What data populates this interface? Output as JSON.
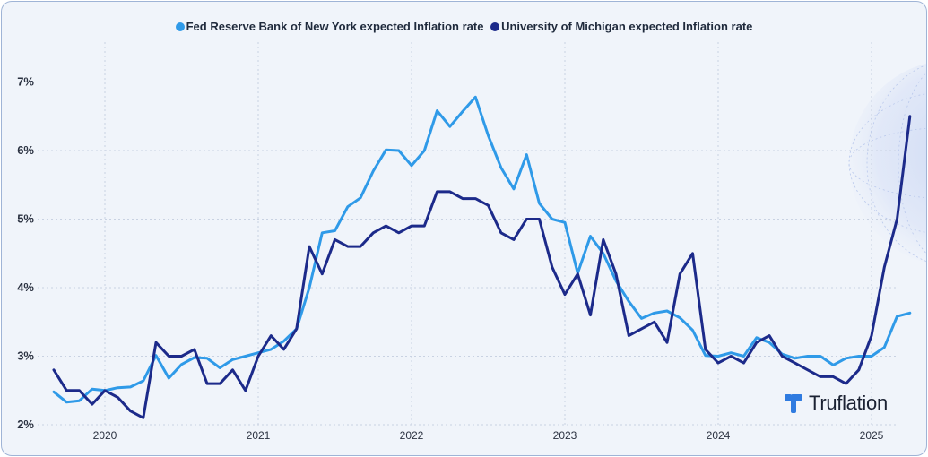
{
  "chart_data": {
    "type": "line",
    "title": "",
    "xlabel": "",
    "ylabel": "",
    "x_ticks": [
      "2020",
      "2021",
      "2022",
      "2023",
      "2024",
      "2025"
    ],
    "y_ticks": [
      "2%",
      "3%",
      "4%",
      "5%",
      "6%",
      "7%"
    ],
    "ylim": [
      2,
      7.6
    ],
    "x_range": [
      "2019-08",
      "2025-05"
    ],
    "grid": "dotted",
    "legend_position": "top-center",
    "dates": [
      "2019-09",
      "2019-10",
      "2019-11",
      "2019-12",
      "2020-01",
      "2020-02",
      "2020-03",
      "2020-04",
      "2020-05",
      "2020-06",
      "2020-07",
      "2020-08",
      "2020-09",
      "2020-10",
      "2020-11",
      "2020-12",
      "2021-01",
      "2021-02",
      "2021-03",
      "2021-04",
      "2021-05",
      "2021-06",
      "2021-07",
      "2021-08",
      "2021-09",
      "2021-10",
      "2021-11",
      "2021-12",
      "2022-01",
      "2022-02",
      "2022-03",
      "2022-04",
      "2022-05",
      "2022-06",
      "2022-07",
      "2022-08",
      "2022-09",
      "2022-10",
      "2022-11",
      "2022-12",
      "2023-01",
      "2023-02",
      "2023-03",
      "2023-04",
      "2023-05",
      "2023-06",
      "2023-07",
      "2023-08",
      "2023-09",
      "2023-10",
      "2023-11",
      "2023-12",
      "2024-01",
      "2024-02",
      "2024-03",
      "2024-04",
      "2024-05",
      "2024-06",
      "2024-07",
      "2024-08",
      "2024-09",
      "2024-10",
      "2024-11",
      "2024-12",
      "2025-01",
      "2025-02",
      "2025-03",
      "2025-04"
    ],
    "series": [
      {
        "name": "Fed Reserve Bank of New York expected Inflation rate",
        "color": "#2f9ae8",
        "values": [
          2.48,
          2.33,
          2.35,
          2.52,
          2.5,
          2.54,
          2.55,
          2.64,
          3.01,
          2.68,
          2.88,
          2.98,
          2.97,
          2.83,
          2.95,
          3.0,
          3.05,
          3.1,
          3.22,
          3.4,
          4.0,
          4.8,
          4.83,
          5.18,
          5.31,
          5.7,
          6.01,
          6.0,
          5.78,
          6.0,
          6.58,
          6.35,
          6.57,
          6.78,
          6.22,
          5.75,
          5.44,
          5.94,
          5.23,
          5.0,
          4.95,
          4.21,
          4.75,
          4.5,
          4.1,
          3.8,
          3.55,
          3.63,
          3.66,
          3.56,
          3.38,
          3.01,
          3.0,
          3.05,
          3.0,
          3.27,
          3.2,
          3.03,
          2.97,
          3.0,
          3.0,
          2.87,
          2.97,
          3.0,
          3.0,
          3.13,
          3.58,
          3.63
        ]
      },
      {
        "name": "University of Michigan expected Inflation rate",
        "color": "#1c2a8a",
        "values": [
          2.8,
          2.5,
          2.5,
          2.3,
          2.5,
          2.4,
          2.2,
          2.1,
          3.2,
          3.0,
          3.0,
          3.1,
          2.6,
          2.6,
          2.8,
          2.5,
          3.0,
          3.3,
          3.1,
          3.4,
          4.6,
          4.2,
          4.7,
          4.6,
          4.6,
          4.8,
          4.9,
          4.8,
          4.9,
          4.9,
          5.4,
          5.4,
          5.3,
          5.3,
          5.2,
          4.8,
          4.7,
          5.0,
          5.0,
          4.3,
          3.9,
          4.2,
          3.6,
          4.7,
          4.2,
          3.3,
          3.4,
          3.5,
          3.2,
          4.2,
          4.5,
          3.1,
          2.9,
          3.0,
          2.9,
          3.2,
          3.3,
          3.0,
          2.9,
          2.8,
          2.7,
          2.7,
          2.6,
          2.8,
          3.3,
          4.3,
          5.0,
          6.5
        ]
      }
    ]
  },
  "brand": {
    "name": "Truflation"
  }
}
